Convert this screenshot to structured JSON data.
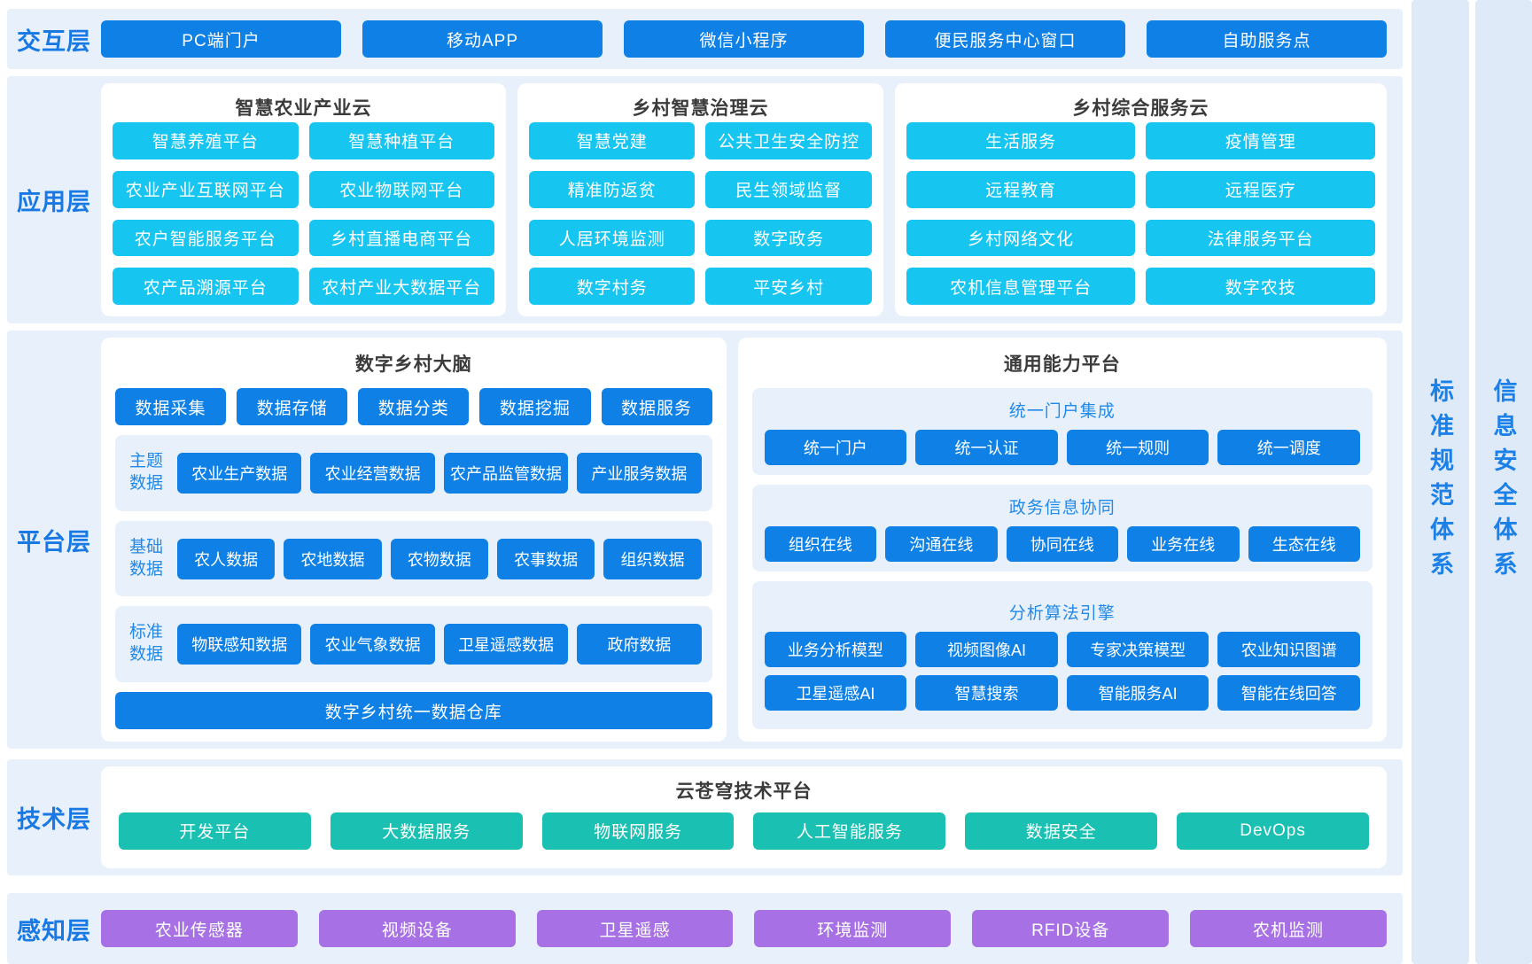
{
  "colors": {
    "primary_blue": "#0f81e6",
    "cyan": "#17c5f1",
    "teal": "#1ac0b2",
    "purple": "#a771e5",
    "label_blue": "#1879e4",
    "heading_blue": "#2389e8",
    "band_background": "#e7f0fb"
  },
  "side_systems": [
    {
      "label": "标准规范体系"
    },
    {
      "label": "信息安全体系"
    }
  ],
  "layers": {
    "interaction": {
      "label": "交互层",
      "items": [
        "PC端门户",
        "移动APP",
        "微信小程序",
        "便民服务中心窗口",
        "自助服务点"
      ]
    },
    "application": {
      "label": "应用层",
      "clouds": [
        {
          "title": "智慧农业产业云",
          "items": [
            "智慧养殖平台",
            "智慧种植平台",
            "农业产业互联网平台",
            "农业物联网平台",
            "农户智能服务平台",
            "乡村直播电商平台",
            "农产品溯源平台",
            "农村产业大数据平台"
          ]
        },
        {
          "title": "乡村智慧治理云",
          "items": [
            "智慧党建",
            "公共卫生安全防控",
            "精准防返贫",
            "民生领域监督",
            "人居环境监测",
            "数字政务",
            "数字村务",
            "平安乡村"
          ]
        },
        {
          "title": "乡村综合服务云",
          "items": [
            "生活服务",
            "疫情管理",
            "远程教育",
            "远程医疗",
            "乡村网络文化",
            "法律服务平台",
            "农机信息管理平台",
            "数字农技"
          ]
        }
      ]
    },
    "platform": {
      "label": "平台层",
      "brain": {
        "title": "数字乡村大脑",
        "top_row": [
          "数据采集",
          "数据存储",
          "数据分类",
          "数据挖掘",
          "数据服务"
        ],
        "data_groups": [
          {
            "label": "主题数据",
            "items": [
              "农业生产数据",
              "农业经营数据",
              "农产品监管数据",
              "产业服务数据"
            ]
          },
          {
            "label": "基础数据",
            "items": [
              "农人数据",
              "农地数据",
              "农物数据",
              "农事数据",
              "组织数据"
            ]
          },
          {
            "label": "标准数据",
            "items": [
              "物联感知数据",
              "农业气象数据",
              "卫星遥感数据",
              "政府数据"
            ]
          }
        ],
        "warehouse": "数字乡村统一数据仓库"
      },
      "capability": {
        "title": "通用能力平台",
        "groups": [
          {
            "heading": "统一门户集成",
            "rows": [
              [
                "统一门户",
                "统一认证",
                "统一规则",
                "统一调度"
              ]
            ]
          },
          {
            "heading": "政务信息协同",
            "rows": [
              [
                "组织在线",
                "沟通在线",
                "协同在线",
                "业务在线",
                "生态在线"
              ]
            ]
          },
          {
            "heading": "分析算法引擎",
            "rows": [
              [
                "业务分析模型",
                "视频图像AI",
                "专家决策模型",
                "农业知识图谱"
              ],
              [
                "卫星遥感AI",
                "智慧搜索",
                "智能服务AI",
                "智能在线回答"
              ]
            ]
          }
        ]
      }
    },
    "technology": {
      "label": "技术层",
      "title": "云苍穹技术平台",
      "items": [
        "开发平台",
        "大数据服务",
        "物联网服务",
        "人工智能服务",
        "数据安全",
        "DevOps"
      ]
    },
    "perception": {
      "label": "感知层",
      "items": [
        "农业传感器",
        "视频设备",
        "卫星遥感",
        "环境监测",
        "RFID设备",
        "农机监测"
      ]
    }
  }
}
